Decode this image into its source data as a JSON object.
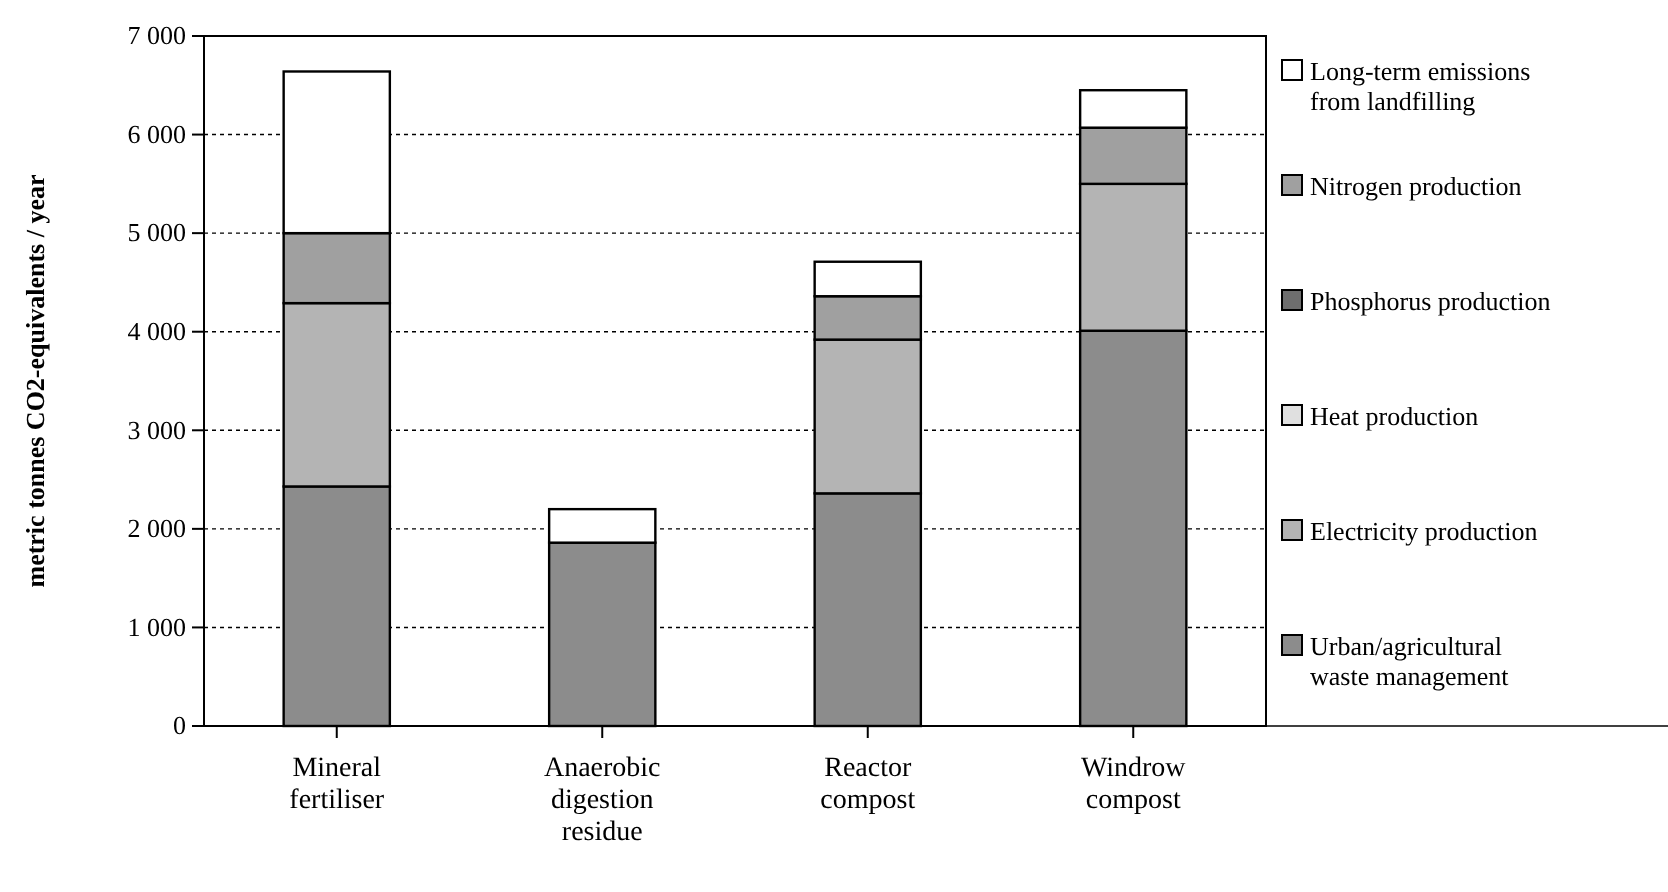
{
  "chart_data": {
    "type": "bar",
    "stacked": true,
    "ylabel": "metric tonnes CO2-equivalents / year",
    "categories": [
      "Mineral fertiliser",
      "Anaerobic digestion residue",
      "Reactor compost",
      "Windrow compost"
    ],
    "series": [
      {
        "name": "Urban/agricultural waste management",
        "color": "#8c8c8c",
        "values": [
          2430,
          1860,
          2360,
          4010
        ]
      },
      {
        "name": "Electricity production",
        "color": "#b4b4b4",
        "values": [
          1860,
          0,
          1560,
          1490
        ]
      },
      {
        "name": "Heat production",
        "color": "#e0e0e0",
        "values": [
          0,
          0,
          0,
          0
        ]
      },
      {
        "name": "Phosphorus production",
        "color": "#6e6e6e",
        "values": [
          0,
          0,
          0,
          0
        ]
      },
      {
        "name": "Nitrogen production",
        "color": "#a0a0a0",
        "values": [
          710,
          0,
          440,
          570
        ]
      },
      {
        "name": "Long-term emissions from landfilling",
        "color": "#ffffff",
        "values": [
          1640,
          340,
          350,
          380
        ]
      }
    ],
    "ylim": [
      0,
      7000
    ],
    "yticks": [
      0,
      {
        "value": 1000,
        "label": "1 000"
      },
      {
        "value": 2000,
        "label": "2 000"
      },
      {
        "value": 3000,
        "label": "3 000"
      },
      {
        "value": 4000,
        "label": "4 000"
      },
      {
        "value": 5000,
        "label": "5 000"
      },
      {
        "value": 6000,
        "label": "6 000"
      },
      {
        "value": 7000,
        "label": "7 000"
      }
    ],
    "grid": "y",
    "legend": "right"
  }
}
